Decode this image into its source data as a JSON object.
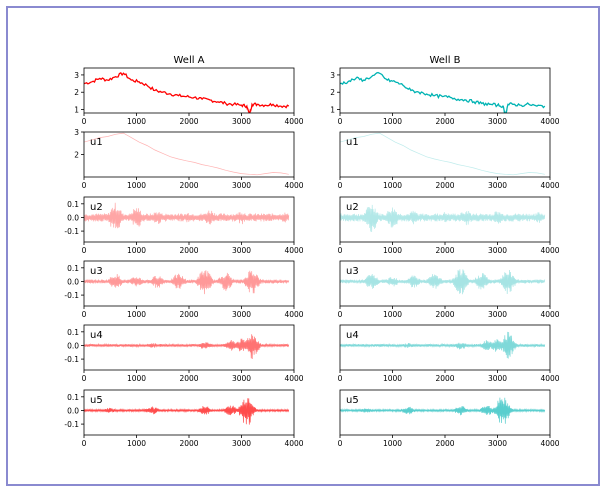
{
  "chart_data": [
    {
      "type": "line",
      "title": "Well A",
      "color": "#ff0000",
      "xlim": [
        0,
        4000
      ],
      "xticks": [
        "0",
        "1000",
        "2000",
        "3000",
        "4000"
      ],
      "panels": [
        {
          "label": "",
          "ylim": [
            0.8,
            3.4
          ],
          "yticks": [
            "1",
            "2",
            "3"
          ],
          "alpha": 1.0,
          "series": {
            "x": [
              0,
              150,
              300,
              450,
              600,
              750,
              900,
              1050,
              1200,
              1350,
              1500,
              1650,
              1800,
              1950,
              2100,
              2250,
              2400,
              2550,
              2700,
              2850,
              3000,
              3100,
              3150,
              3200,
              3300,
              3450,
              3600,
              3750,
              3900
            ],
            "y": [
              2.5,
              2.6,
              2.8,
              2.7,
              2.9,
              3.1,
              2.7,
              2.6,
              2.4,
              2.1,
              2.0,
              1.9,
              1.8,
              1.75,
              1.7,
              1.6,
              1.55,
              1.45,
              1.35,
              1.3,
              1.25,
              1.2,
              0.7,
              1.3,
              1.3,
              1.25,
              1.3,
              1.2,
              1.2
            ]
          }
        },
        {
          "label": "u1",
          "ylim": [
            1.0,
            3.0
          ],
          "yticks": [
            "2",
            "3"
          ],
          "alpha": 0.3,
          "series": {
            "x": [
              0,
              150,
              300,
              450,
              600,
              750,
              900,
              1050,
              1200,
              1350,
              1500,
              1650,
              1800,
              1950,
              2100,
              2250,
              2400,
              2550,
              2700,
              2850,
              3000,
              3150,
              3300,
              3450,
              3600,
              3750,
              3900
            ],
            "y": [
              2.55,
              2.65,
              2.75,
              2.8,
              2.9,
              2.95,
              2.75,
              2.55,
              2.4,
              2.2,
              2.05,
              1.9,
              1.8,
              1.72,
              1.65,
              1.55,
              1.48,
              1.4,
              1.3,
              1.22,
              1.15,
              1.12,
              1.1,
              1.15,
              1.2,
              1.18,
              1.12
            ]
          }
        },
        {
          "label": "u2",
          "ylim": [
            -0.18,
            0.15
          ],
          "yticks": [
            "0.1",
            "0.0",
            "-0.1"
          ],
          "alpha": 0.35,
          "osc": {
            "start": 0,
            "end": 3900,
            "peaks": [
              [
                600,
                0.11
              ],
              [
                1000,
                0.08
              ],
              [
                1400,
                0.05
              ],
              [
                2000,
                0.04
              ],
              [
                2400,
                0.06
              ],
              [
                3000,
                0.05
              ],
              [
                3800,
                0.04
              ]
            ],
            "base": 0.03
          }
        },
        {
          "label": "u3",
          "ylim": [
            -0.18,
            0.15
          ],
          "yticks": [
            "0.1",
            "0.0",
            "-0.1"
          ],
          "alpha": 0.4,
          "osc": {
            "start": 0,
            "end": 3900,
            "peaks": [
              [
                600,
                0.06
              ],
              [
                1000,
                0.04
              ],
              [
                1400,
                0.05
              ],
              [
                1800,
                0.06
              ],
              [
                2300,
                0.1
              ],
              [
                2700,
                0.07
              ],
              [
                3200,
                0.1
              ]
            ],
            "base": 0.015
          }
        },
        {
          "label": "u4",
          "ylim": [
            -0.18,
            0.15
          ],
          "yticks": [
            "0.1",
            "0.0",
            "-0.1"
          ],
          "alpha": 0.55,
          "osc": {
            "start": 0,
            "end": 3900,
            "peaks": [
              [
                1300,
                0.02
              ],
              [
                2300,
                0.03
              ],
              [
                2800,
                0.04
              ],
              [
                3000,
                0.05
              ],
              [
                3200,
                0.1
              ]
            ],
            "base": 0.01
          }
        },
        {
          "label": "u5",
          "ylim": [
            -0.18,
            0.15
          ],
          "yticks": [
            "0.1",
            "0.0",
            "-0.1"
          ],
          "alpha": 0.7,
          "osc": {
            "start": 0,
            "end": 3900,
            "peaks": [
              [
                500,
                0.02
              ],
              [
                1300,
                0.03
              ],
              [
                2300,
                0.035
              ],
              [
                2800,
                0.04
              ],
              [
                3100,
                0.12
              ]
            ],
            "base": 0.008
          }
        }
      ]
    },
    {
      "type": "line",
      "title": "Well B",
      "color": "#00b3b3",
      "xlim": [
        0,
        4000
      ],
      "xticks": [
        "0",
        "1000",
        "2000",
        "3000",
        "4000"
      ],
      "panels": [
        {
          "label": "",
          "ylim": [
            0.8,
            3.4
          ],
          "yticks": [
            "1",
            "2",
            "3"
          ],
          "alpha": 1.0,
          "series": {
            "x": [
              0,
              150,
              300,
              450,
              600,
              750,
              900,
              1050,
              1200,
              1350,
              1500,
              1650,
              1800,
              1950,
              2100,
              2250,
              2400,
              2550,
              2700,
              2850,
              3000,
              3100,
              3150,
              3200,
              3300,
              3450,
              3600,
              3750,
              3900
            ],
            "y": [
              2.5,
              2.6,
              2.8,
              2.7,
              2.9,
              3.1,
              2.7,
              2.6,
              2.4,
              2.1,
              2.0,
              1.9,
              1.8,
              1.75,
              1.7,
              1.6,
              1.55,
              1.45,
              1.35,
              1.3,
              1.25,
              1.2,
              0.7,
              1.3,
              1.3,
              1.25,
              1.3,
              1.2,
              1.2
            ]
          }
        },
        {
          "label": "u1",
          "ylim": [
            1.0,
            3.0
          ],
          "yticks": [],
          "alpha": 0.25,
          "series": {
            "x": [
              0,
              150,
              300,
              450,
              600,
              750,
              900,
              1050,
              1200,
              1350,
              1500,
              1650,
              1800,
              1950,
              2100,
              2250,
              2400,
              2550,
              2700,
              2850,
              3000,
              3150,
              3300,
              3450,
              3600,
              3750,
              3900
            ],
            "y": [
              2.55,
              2.65,
              2.75,
              2.8,
              2.9,
              2.95,
              2.75,
              2.55,
              2.4,
              2.2,
              2.05,
              1.9,
              1.8,
              1.72,
              1.65,
              1.55,
              1.48,
              1.4,
              1.3,
              1.22,
              1.15,
              1.12,
              1.1,
              1.15,
              1.2,
              1.18,
              1.12
            ]
          }
        },
        {
          "label": "u2",
          "ylim": [
            -0.18,
            0.15
          ],
          "yticks": [],
          "alpha": 0.3,
          "osc": {
            "start": 0,
            "end": 3900,
            "peaks": [
              [
                600,
                0.11
              ],
              [
                1000,
                0.08
              ],
              [
                1400,
                0.05
              ],
              [
                2000,
                0.04
              ],
              [
                2400,
                0.06
              ],
              [
                3000,
                0.05
              ],
              [
                3800,
                0.04
              ]
            ],
            "base": 0.03
          }
        },
        {
          "label": "u3",
          "ylim": [
            -0.18,
            0.15
          ],
          "yticks": [],
          "alpha": 0.35,
          "osc": {
            "start": 0,
            "end": 3900,
            "peaks": [
              [
                600,
                0.06
              ],
              [
                1000,
                0.04
              ],
              [
                1400,
                0.05
              ],
              [
                1800,
                0.06
              ],
              [
                2300,
                0.1
              ],
              [
                2700,
                0.07
              ],
              [
                3200,
                0.1
              ]
            ],
            "base": 0.015
          }
        },
        {
          "label": "u4",
          "ylim": [
            -0.18,
            0.15
          ],
          "yticks": [],
          "alpha": 0.5,
          "osc": {
            "start": 0,
            "end": 3900,
            "peaks": [
              [
                1300,
                0.02
              ],
              [
                2300,
                0.03
              ],
              [
                2800,
                0.04
              ],
              [
                3000,
                0.05
              ],
              [
                3200,
                0.1
              ]
            ],
            "base": 0.01
          }
        },
        {
          "label": "u5",
          "ylim": [
            -0.18,
            0.15
          ],
          "yticks": [],
          "alpha": 0.65,
          "osc": {
            "start": 0,
            "end": 3900,
            "peaks": [
              [
                500,
                0.02
              ],
              [
                1300,
                0.03
              ],
              [
                2300,
                0.035
              ],
              [
                2800,
                0.04
              ],
              [
                3100,
                0.12
              ]
            ],
            "base": 0.008
          }
        }
      ]
    }
  ]
}
